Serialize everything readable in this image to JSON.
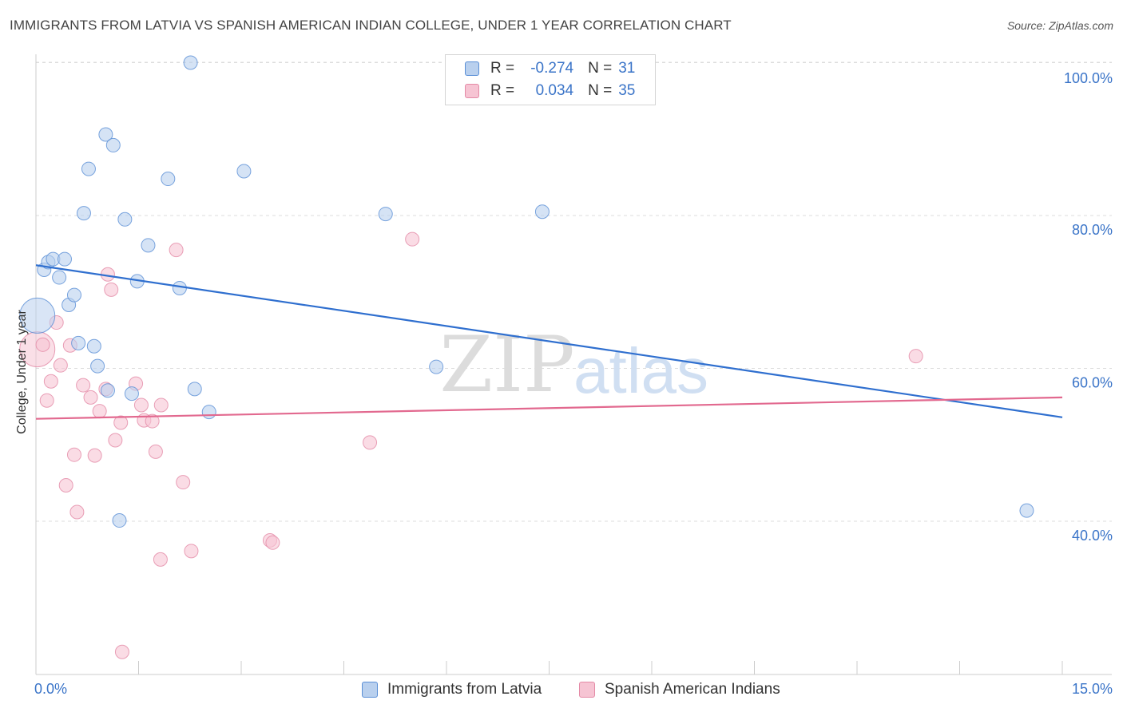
{
  "title": "IMMIGRANTS FROM LATVIA VS SPANISH AMERICAN INDIAN COLLEGE, UNDER 1 YEAR CORRELATION CHART",
  "source": "Source: ZipAtlas.com",
  "watermark": {
    "zip": "ZIP",
    "atlas": "atlas"
  },
  "legend": {
    "rows": [
      {
        "r_label": "R =",
        "r_value": "-0.274",
        "n_label": "N =",
        "n_value": "31"
      },
      {
        "r_label": "R =",
        "r_value": "0.034",
        "n_label": "N =",
        "n_value": "35"
      }
    ]
  },
  "bottom_legend": {
    "series1": "Immigrants from Latvia",
    "series2": "Spanish American Indians"
  },
  "colors": {
    "blue_fill": "#b9d0ee",
    "blue_stroke": "#5a8fd6",
    "blue_line": "#2f6fcf",
    "pink_fill": "#f6c4d3",
    "pink_stroke": "#e48aa6",
    "pink_line": "#e2698f",
    "axis_text": "#3a74c8",
    "grid": "#dddddd"
  },
  "chart_data": {
    "type": "scatter",
    "title": "IMMIGRANTS FROM LATVIA VS SPANISH AMERICAN INDIAN COLLEGE, UNDER 1 YEAR CORRELATION CHART",
    "xlabel": "",
    "ylabel": "College, Under 1 year",
    "xlim": [
      0,
      15
    ],
    "ylim": [
      20,
      102
    ],
    "x_tick_labels": [
      "0.0%",
      "15.0%"
    ],
    "y_ticks": [
      40,
      60,
      80,
      100
    ],
    "y_tick_labels": [
      "40.0%",
      "60.0%",
      "80.0%",
      "100.0%"
    ],
    "grid": true,
    "series": [
      {
        "name": "Immigrants from Latvia",
        "R": -0.274,
        "N": 31,
        "trend": {
          "x": [
            0.0,
            15.0
          ],
          "y": [
            73.5,
            53.6
          ]
        },
        "points": [
          {
            "x": 0.02,
            "y": 66.9,
            "big": true
          },
          {
            "x": 0.12,
            "y": 72.9
          },
          {
            "x": 0.18,
            "y": 73.9
          },
          {
            "x": 0.25,
            "y": 74.3
          },
          {
            "x": 0.34,
            "y": 71.9
          },
          {
            "x": 0.42,
            "y": 74.3
          },
          {
            "x": 0.48,
            "y": 68.3
          },
          {
            "x": 0.56,
            "y": 69.6
          },
          {
            "x": 0.62,
            "y": 63.3
          },
          {
            "x": 0.7,
            "y": 80.3
          },
          {
            "x": 0.77,
            "y": 86.1
          },
          {
            "x": 0.85,
            "y": 62.9
          },
          {
            "x": 0.9,
            "y": 60.3
          },
          {
            "x": 1.02,
            "y": 90.6
          },
          {
            "x": 1.05,
            "y": 57.1
          },
          {
            "x": 1.13,
            "y": 89.2
          },
          {
            "x": 1.22,
            "y": 40.1
          },
          {
            "x": 1.3,
            "y": 79.5
          },
          {
            "x": 1.4,
            "y": 56.7
          },
          {
            "x": 1.48,
            "y": 71.4
          },
          {
            "x": 1.64,
            "y": 76.1
          },
          {
            "x": 1.93,
            "y": 84.8
          },
          {
            "x": 2.1,
            "y": 70.5
          },
          {
            "x": 2.26,
            "y": 100.0
          },
          {
            "x": 2.32,
            "y": 57.3
          },
          {
            "x": 2.53,
            "y": 54.3
          },
          {
            "x": 3.04,
            "y": 85.8
          },
          {
            "x": 5.11,
            "y": 80.2
          },
          {
            "x": 5.85,
            "y": 60.2
          },
          {
            "x": 7.4,
            "y": 80.5
          },
          {
            "x": 14.48,
            "y": 41.4
          }
        ]
      },
      {
        "name": "Spanish American Indians",
        "R": 0.034,
        "N": 35,
        "trend": {
          "x": [
            0.0,
            15.0
          ],
          "y": [
            53.4,
            56.2
          ]
        },
        "points": [
          {
            "x": 0.02,
            "y": 62.5,
            "big": true
          },
          {
            "x": 0.1,
            "y": 63.1
          },
          {
            "x": 0.16,
            "y": 55.8
          },
          {
            "x": 0.22,
            "y": 58.3
          },
          {
            "x": 0.3,
            "y": 66.0
          },
          {
            "x": 0.36,
            "y": 60.4
          },
          {
            "x": 0.44,
            "y": 44.7
          },
          {
            "x": 0.5,
            "y": 63.0
          },
          {
            "x": 0.56,
            "y": 48.7
          },
          {
            "x": 0.6,
            "y": 41.2
          },
          {
            "x": 0.69,
            "y": 57.8
          },
          {
            "x": 0.8,
            "y": 56.2
          },
          {
            "x": 0.86,
            "y": 48.6
          },
          {
            "x": 0.93,
            "y": 54.4
          },
          {
            "x": 1.02,
            "y": 57.3
          },
          {
            "x": 1.05,
            "y": 72.3
          },
          {
            "x": 1.1,
            "y": 70.3
          },
          {
            "x": 1.16,
            "y": 50.6
          },
          {
            "x": 1.24,
            "y": 52.9
          },
          {
            "x": 1.26,
            "y": 22.9
          },
          {
            "x": 1.46,
            "y": 58.0
          },
          {
            "x": 1.54,
            "y": 55.2
          },
          {
            "x": 1.58,
            "y": 53.2
          },
          {
            "x": 1.7,
            "y": 53.1
          },
          {
            "x": 1.75,
            "y": 49.1
          },
          {
            "x": 1.82,
            "y": 35.0
          },
          {
            "x": 1.83,
            "y": 55.2
          },
          {
            "x": 2.05,
            "y": 75.5
          },
          {
            "x": 2.15,
            "y": 45.1
          },
          {
            "x": 2.27,
            "y": 36.1
          },
          {
            "x": 3.42,
            "y": 37.5
          },
          {
            "x": 3.46,
            "y": 37.2
          },
          {
            "x": 4.88,
            "y": 50.3
          },
          {
            "x": 5.5,
            "y": 76.9
          },
          {
            "x": 12.86,
            "y": 61.6
          }
        ]
      }
    ]
  }
}
